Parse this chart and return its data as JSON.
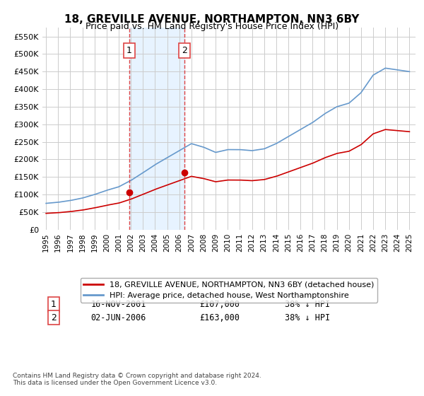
{
  "title": "18, GREVILLE AVENUE, NORTHAMPTON, NN3 6BY",
  "subtitle": "Price paid vs. HM Land Registry's House Price Index (HPI)",
  "legend_line1": "18, GREVILLE AVENUE, NORTHAMPTON, NN3 6BY (detached house)",
  "legend_line2": "HPI: Average price, detached house, West Northamptonshire",
  "footnote": "Contains HM Land Registry data © Crown copyright and database right 2024.\nThis data is licensed under the Open Government Licence v3.0.",
  "sale1_label": "1",
  "sale1_date": "16-NOV-2001",
  "sale1_price": "£107,000",
  "sale1_hpi": "38% ↓ HPI",
  "sale2_label": "2",
  "sale2_date": "02-JUN-2006",
  "sale2_price": "£163,000",
  "sale2_hpi": "38% ↓ HPI",
  "sale1_x": 2001.88,
  "sale2_x": 2006.42,
  "sale1_y": 107000,
  "sale2_y": 163000,
  "vline1_x": 2001.88,
  "vline2_x": 2006.42,
  "ylim": [
    0,
    575000
  ],
  "xlim_start": 1995,
  "xlim_end": 2025.5,
  "red_color": "#cc0000",
  "blue_color": "#6699cc",
  "grid_color": "#cccccc",
  "bg_color": "#ffffff",
  "vline_color": "#dd4444",
  "highlight_band_color": "#ddeeff",
  "yticks": [
    0,
    50000,
    100000,
    150000,
    200000,
    250000,
    300000,
    350000,
    400000,
    450000,
    500000,
    550000
  ],
  "xticks": [
    1995,
    1996,
    1997,
    1998,
    1999,
    2000,
    2001,
    2002,
    2003,
    2004,
    2005,
    2006,
    2007,
    2008,
    2009,
    2010,
    2011,
    2012,
    2013,
    2014,
    2015,
    2016,
    2017,
    2018,
    2019,
    2020,
    2021,
    2022,
    2023,
    2024,
    2025
  ]
}
